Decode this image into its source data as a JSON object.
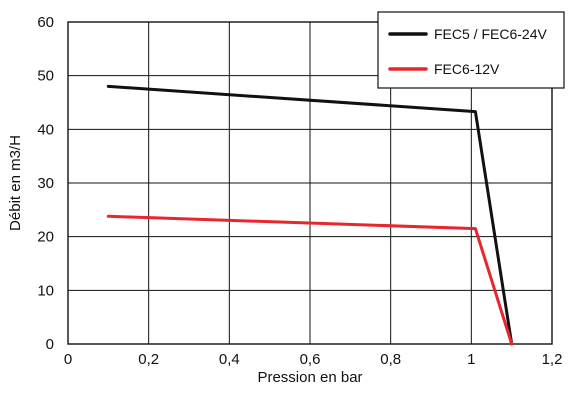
{
  "chart_data": {
    "type": "line",
    "title": "",
    "xlabel": "Pression en bar",
    "ylabel": "Débit en m3/H",
    "xlim": [
      0,
      1.2
    ],
    "ylim": [
      0,
      60
    ],
    "x_ticks": [
      0,
      0.2,
      0.4,
      0.6,
      0.8,
      1,
      1.2
    ],
    "x_tick_labels": [
      "0",
      "0,2",
      "0,4",
      "0,6",
      "0,8",
      "1",
      "1,2"
    ],
    "y_ticks": [
      0,
      10,
      20,
      30,
      40,
      50,
      60
    ],
    "y_tick_labels": [
      "0",
      "10",
      "20",
      "30",
      "40",
      "50",
      "60"
    ],
    "grid": true,
    "legend_position": "top-right",
    "series": [
      {
        "name": "FEC5 / FEC6-24V",
        "color": "#111111",
        "points": [
          [
            0.1,
            48
          ],
          [
            1.01,
            43.3
          ],
          [
            1.1,
            0
          ]
        ]
      },
      {
        "name": "FEC6-12V",
        "color": "#e8262d",
        "points": [
          [
            0.1,
            23.8
          ],
          [
            1.01,
            21.5
          ],
          [
            1.1,
            0
          ]
        ]
      }
    ]
  }
}
